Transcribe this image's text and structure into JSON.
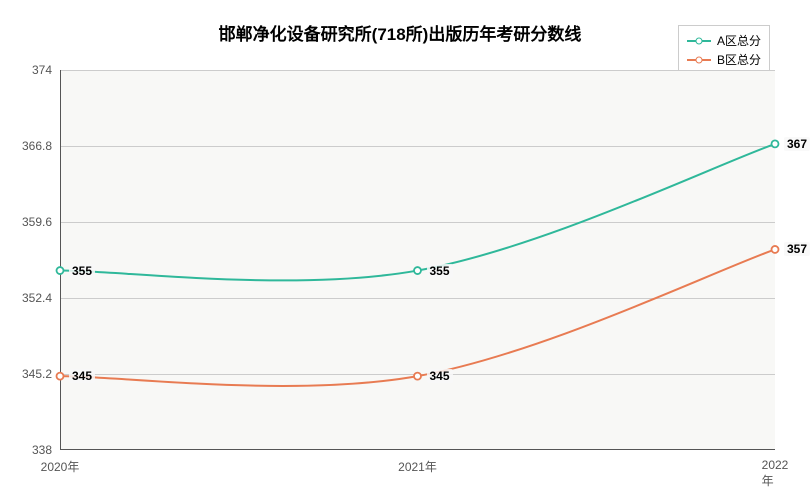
{
  "chart": {
    "type": "line",
    "title": "邯郸净化设备研究所(718所)出版历年考研分数线",
    "title_fontsize": 17,
    "title_fontweight": "bold",
    "title_color": "#000000",
    "background_color": "#ffffff",
    "plot_background_color": "#f8f8f6",
    "plot_border_color": "#555555",
    "grid_color": "#cccccc",
    "axis_label_color": "#555555",
    "axis_label_fontsize": 12,
    "data_label_fontsize": 12,
    "data_label_fontweight": "bold",
    "x": {
      "categories": [
        "2020年",
        "2021年",
        "2022年"
      ],
      "positions": [
        0,
        0.5,
        1
      ]
    },
    "y": {
      "min": 338,
      "max": 374,
      "ticks": [
        338,
        345.2,
        352.4,
        359.6,
        366.8,
        374
      ],
      "tick_labels": [
        "338",
        "345.2",
        "352.4",
        "359.6",
        "366.8",
        "374"
      ]
    },
    "series": [
      {
        "name": "A区总分",
        "color": "#2fb89a",
        "values": [
          355,
          355,
          367
        ],
        "marker": "hollow-circle",
        "line_width": 2
      },
      {
        "name": "B区总分",
        "color": "#e87b52",
        "values": [
          345,
          345,
          357
        ],
        "marker": "hollow-circle",
        "line_width": 2
      }
    ],
    "legend": {
      "position": "top-right",
      "border_color": "#cccccc",
      "fontsize": 12
    }
  }
}
